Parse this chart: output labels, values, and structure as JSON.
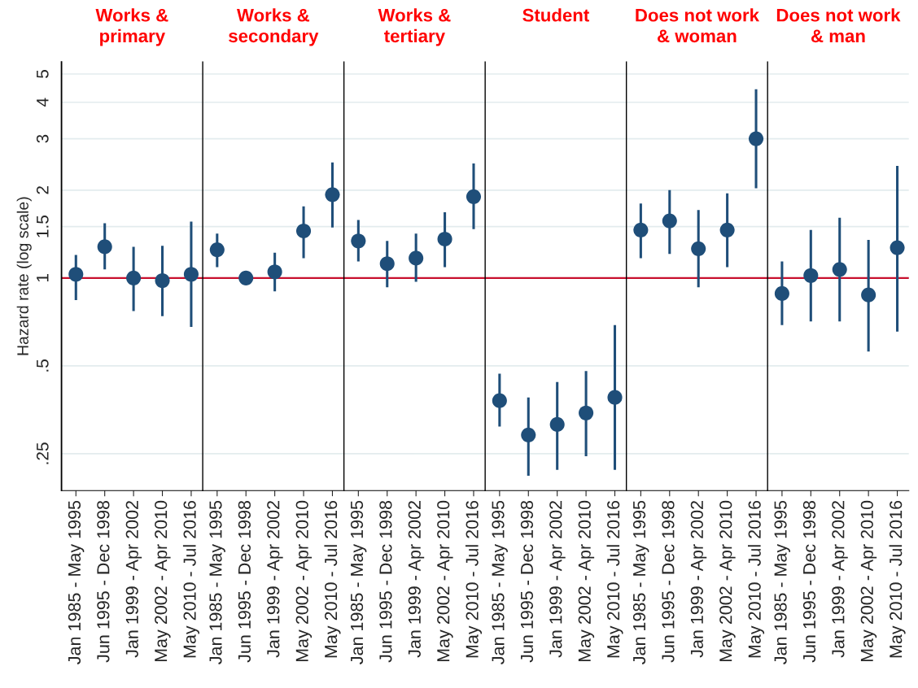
{
  "chart_data": [
    {
      "type": "scatter",
      "title": "Works &\nprimary",
      "ylabel": "Hazard rate (log scale)",
      "categories": [
        "Jan 1985 - May 1995",
        "Jun 1995 - Dec 1998",
        "Jan 1999 - Apr 2002",
        "May 2002 - Apr 2010",
        "May 2010 - Jul 2016"
      ],
      "series": [
        {
          "color": "#1f4e79",
          "values": [
            1.03,
            1.28,
            1.0,
            0.98,
            1.03
          ],
          "errors": [
            [
              0.84,
              1.2
            ],
            [
              1.07,
              1.54
            ],
            [
              0.77,
              1.28
            ],
            [
              0.74,
              1.29
            ],
            [
              0.68,
              1.56
            ]
          ]
        }
      ],
      "log": "y",
      "ylim": [
        0.187,
        5.5
      ],
      "yticks": [
        {
          "value": 0.25,
          "label": ".25"
        },
        {
          "value": 0.5,
          "label": ".5"
        },
        1,
        {
          "value": 1.5,
          "label": "1.5"
        },
        2,
        3,
        4,
        5
      ],
      "grid": "y",
      "marker": "circle",
      "ref_lines": [
        {
          "axis": "y",
          "value": 1,
          "color": "#c8102e"
        }
      ]
    },
    {
      "type": "scatter",
      "title": "Works &\nsecondary",
      "categories": [
        "Jan 1985 - May 1995",
        "Jun 1995 - Dec 1998",
        "Jan 1999 - Apr 2002",
        "May 2002 - Apr 2010",
        "May 2010 - Jul 2016"
      ],
      "series": [
        {
          "color": "#1f4e79",
          "values": [
            1.25,
            1.0,
            1.05,
            1.45,
            1.93
          ],
          "errors": [
            [
              1.09,
              1.42
            ],
            null,
            [
              0.9,
              1.22
            ],
            [
              1.17,
              1.76
            ],
            [
              1.49,
              2.49
            ]
          ]
        }
      ],
      "log": "y",
      "ylim": [
        0.187,
        5.5
      ],
      "yticks": [
        0.25,
        0.5,
        1,
        1.5,
        2,
        3,
        4,
        5
      ],
      "grid": "y",
      "marker": "circle",
      "tick_labels": "x",
      "ref_lines": [
        {
          "axis": "y",
          "value": 1,
          "color": "#c8102e"
        }
      ]
    },
    {
      "type": "scatter",
      "title": "Works &\ntertiary",
      "categories": [
        "Jan 1985 - May 1995",
        "Jun 1995 - Dec 1998",
        "Jan 1999 - Apr 2002",
        "May 2002 - Apr 2010",
        "May 2010 - Jul 2016"
      ],
      "series": [
        {
          "color": "#1f4e79",
          "values": [
            1.34,
            1.12,
            1.17,
            1.36,
            1.9
          ],
          "errors": [
            [
              1.14,
              1.58
            ],
            [
              0.93,
              1.34
            ],
            [
              0.97,
              1.42
            ],
            [
              1.09,
              1.68
            ],
            [
              1.47,
              2.47
            ]
          ]
        }
      ],
      "log": "y",
      "ylim": [
        0.187,
        5.5
      ],
      "yticks": [
        0.25,
        0.5,
        1,
        1.5,
        2,
        3,
        4,
        5
      ],
      "grid": "y",
      "marker": "circle",
      "tick_labels": "x",
      "ref_lines": [
        {
          "axis": "y",
          "value": 1,
          "color": "#c8102e"
        }
      ]
    },
    {
      "type": "scatter",
      "title": "Student",
      "categories": [
        "Jan 1985 - May 1995",
        "Jun 1995 - Dec 1998",
        "Jan 1999 - Apr 2002",
        "May 2002 - Apr 2010",
        "May 2010 - Jul 2016"
      ],
      "series": [
        {
          "color": "#1f4e79",
          "values": [
            0.38,
            0.29,
            0.315,
            0.345,
            0.39
          ],
          "errors": [
            [
              0.31,
              0.47
            ],
            [
              0.21,
              0.39
            ],
            [
              0.22,
              0.44
            ],
            [
              0.245,
              0.48
            ],
            [
              0.22,
              0.69
            ]
          ]
        }
      ],
      "log": "y",
      "ylim": [
        0.187,
        5.5
      ],
      "yticks": [
        0.25,
        0.5,
        1,
        1.5,
        2,
        3,
        4,
        5
      ],
      "grid": "y",
      "marker": "circle",
      "tick_labels": "x",
      "ref_lines": [
        {
          "axis": "y",
          "value": 1,
          "color": "#c8102e"
        }
      ]
    },
    {
      "type": "scatter",
      "title": "Does not work\n& woman",
      "categories": [
        "Jan 1985 - May 1995",
        "Jun 1995 - Dec 1998",
        "Jan 1999 - Apr 2002",
        "May 2002 - Apr 2010",
        "May 2010 - Jul 2016"
      ],
      "series": [
        {
          "color": "#1f4e79",
          "values": [
            1.46,
            1.57,
            1.26,
            1.46,
            3.0
          ],
          "errors": [
            [
              1.17,
              1.8
            ],
            [
              1.21,
              2.0
            ],
            [
              0.93,
              1.71
            ],
            [
              1.09,
              1.95
            ],
            [
              2.03,
              4.43
            ]
          ]
        }
      ],
      "log": "y",
      "ylim": [
        0.187,
        5.5
      ],
      "yticks": [
        0.25,
        0.5,
        1,
        1.5,
        2,
        3,
        4,
        5
      ],
      "grid": "y",
      "marker": "circle",
      "tick_labels": "x",
      "ref_lines": [
        {
          "axis": "y",
          "value": 1,
          "color": "#c8102e"
        }
      ]
    },
    {
      "type": "scatter",
      "title": "Does not work\n& man",
      "categories": [
        "Jan 1985 - May 1995",
        "Jun 1995 - Dec 1998",
        "Jan 1999 - Apr 2002",
        "May 2002 - Apr 2010",
        "May 2010 - Jul 2016"
      ],
      "series": [
        {
          "color": "#1f4e79",
          "values": [
            0.885,
            1.02,
            1.07,
            0.875,
            1.27
          ],
          "errors": [
            [
              0.69,
              1.14
            ],
            [
              0.71,
              1.46
            ],
            [
              0.71,
              1.61
            ],
            [
              0.56,
              1.35
            ],
            [
              0.655,
              2.42
            ]
          ]
        }
      ],
      "log": "y",
      "ylim": [
        0.187,
        5.5
      ],
      "yticks": [
        0.25,
        0.5,
        1,
        1.5,
        2,
        3,
        4,
        5
      ],
      "grid": "y",
      "marker": "circle",
      "tick_labels": "x",
      "ref_lines": [
        {
          "axis": "y",
          "value": 1,
          "color": "#c8102e"
        }
      ]
    }
  ]
}
